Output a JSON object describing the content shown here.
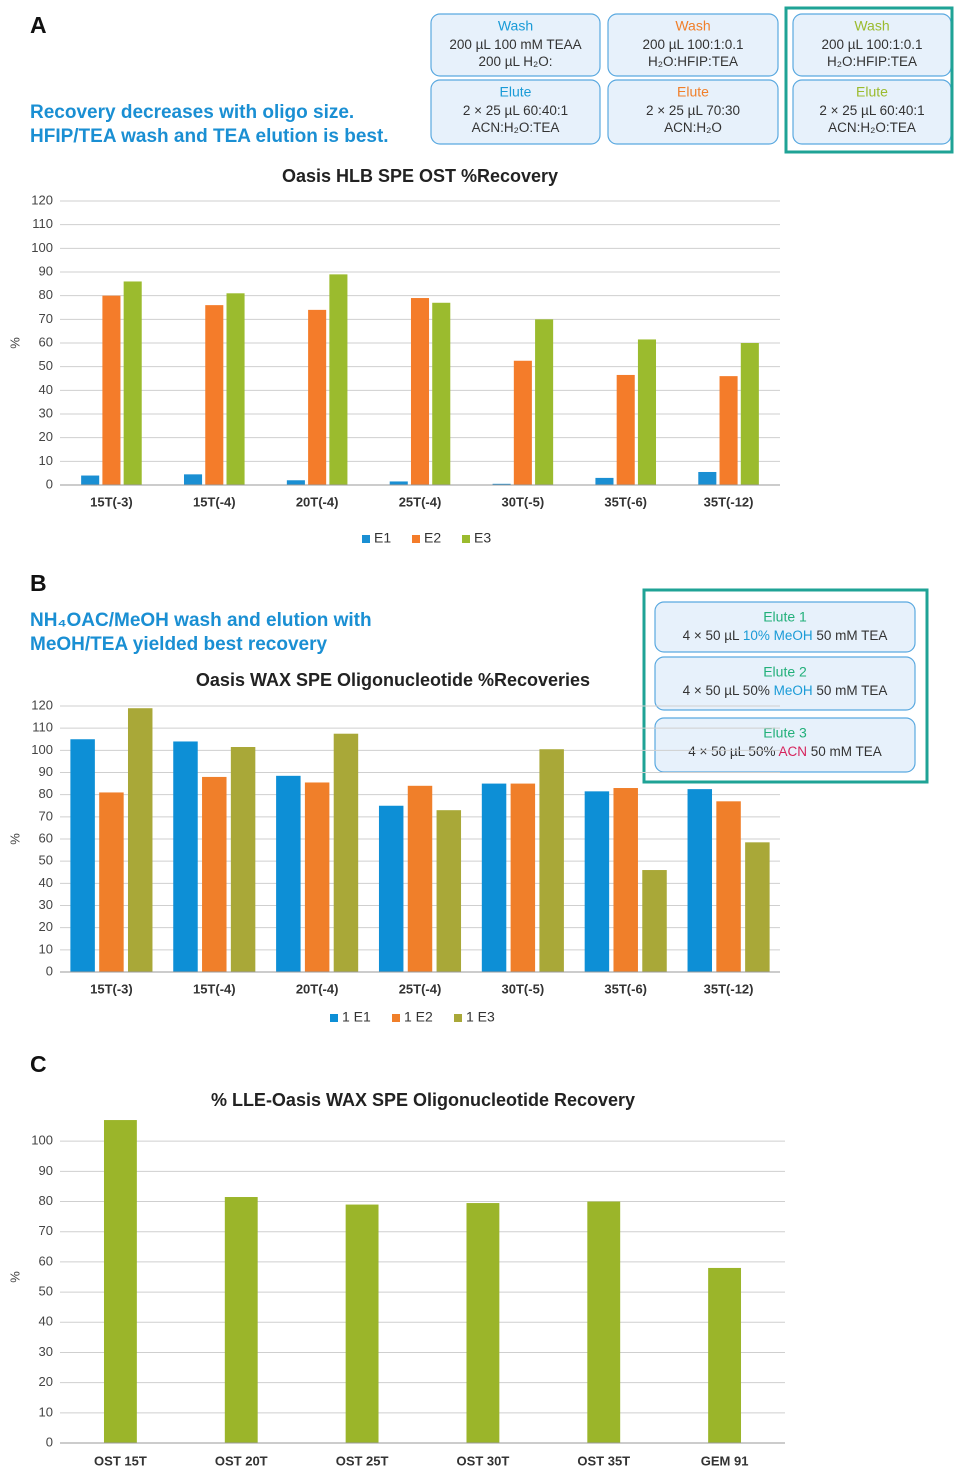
{
  "chart_data": [
    {
      "type": "bar",
      "title": "Oasis HLB SPE OST %Recovery",
      "y_label": "%",
      "categories": [
        "15T(-3)",
        "15T(-4)",
        "20T(-4)",
        "25T(-4)",
        "30T(-5)",
        "35T(-6)",
        "35T(-12)"
      ],
      "series": [
        {
          "name": "E1",
          "color": "#1a8fd3",
          "values": [
            4,
            4.5,
            2,
            1.5,
            0.5,
            3,
            5.5
          ]
        },
        {
          "name": "E2",
          "color": "#f47c2a",
          "values": [
            80,
            76,
            74,
            79,
            52.5,
            46.5,
            46
          ]
        },
        {
          "name": "E3",
          "color": "#9bbb2e",
          "values": [
            86,
            81,
            89,
            77,
            70,
            61.5,
            60
          ]
        }
      ],
      "ylim": [
        0,
        120
      ],
      "yticks": [
        0,
        10,
        20,
        30,
        40,
        50,
        60,
        70,
        80,
        90,
        100,
        110,
        120
      ],
      "grid": true,
      "legend": "bottom"
    },
    {
      "type": "bar",
      "title": "Oasis WAX SPE Oligonucleotide %Recoveries",
      "y_label": "%",
      "categories": [
        "15T(-3)",
        "15T(-4)",
        "20T(-4)",
        "25T(-4)",
        "30T(-5)",
        "35T(-6)",
        "35T(-12)"
      ],
      "series": [
        {
          "name": "1 E1",
          "color": "#0d8fd6",
          "values": [
            105,
            104,
            88.5,
            75,
            85,
            81.5,
            82.5
          ]
        },
        {
          "name": "1 E2",
          "color": "#f07f2a",
          "values": [
            81,
            88,
            85.5,
            84,
            85,
            83,
            77
          ]
        },
        {
          "name": "1 E3",
          "color": "#a9a838",
          "values": [
            119,
            101.5,
            107.5,
            73,
            100.5,
            46,
            58.5
          ]
        }
      ],
      "ylim": [
        0,
        120
      ],
      "yticks": [
        0,
        10,
        20,
        30,
        40,
        50,
        60,
        70,
        80,
        90,
        100,
        110,
        120
      ],
      "grid": true,
      "legend": "bottom"
    },
    {
      "type": "bar",
      "title": "% LLE-Oasis WAX SPE Oligonucleotide Recovery",
      "y_label": "%",
      "categories": [
        "OST 15T",
        "OST 20T",
        "OST 25T",
        "OST 30T",
        "OST 35T",
        "GEM 91"
      ],
      "values": [
        107,
        81.5,
        79,
        79.5,
        80,
        58
      ],
      "color": "#9bb52a",
      "ylim": [
        0,
        110
      ],
      "yticks": [
        0,
        10,
        20,
        30,
        40,
        50,
        60,
        70,
        80,
        90,
        100
      ],
      "grid": true
    }
  ],
  "panels": [
    {
      "letter": "A",
      "headline": [
        "Recovery decreases with oligo size.",
        "HFIP/TEA wash and TEA elution is best."
      ],
      "frame_color": "#1fa396",
      "boxes": [
        {
          "title": "Wash",
          "title_color": "#1a9bd7",
          "lines": [
            [
              {
                "text": "200 µL 100 mM TEAA"
              }
            ],
            [
              {
                "text": "200 µL H₂O:"
              }
            ]
          ]
        },
        {
          "title": "Elute",
          "title_color": "#1a9bd7",
          "lines": [
            [
              {
                "text": "2 × 25 µL 60:40:1"
              }
            ],
            [
              {
                "text": "ACN:H₂O:TEA"
              }
            ]
          ]
        },
        {
          "title": "Wash",
          "title_color": "#f07f2a",
          "lines": [
            [
              {
                "text": "200 µL 100:1:0.1"
              }
            ],
            [
              {
                "text": "H₂O:HFIP:TEA"
              }
            ]
          ]
        },
        {
          "title": "Elute",
          "title_color": "#f07f2a",
          "lines": [
            [
              {
                "text": "2 × 25 µL 70:30"
              }
            ],
            [
              {
                "text": "ACN:H₂O"
              }
            ]
          ]
        },
        {
          "title": "Wash",
          "title_color": "#9bbb2e",
          "lines": [
            [
              {
                "text": "200 µL 100:1:0.1"
              }
            ],
            [
              {
                "text": "H₂O:HFIP:TEA"
              }
            ]
          ]
        },
        {
          "title": "Elute",
          "title_color": "#9bbb2e",
          "lines": [
            [
              {
                "text": "2 × 25 µL 60:40:1"
              }
            ],
            [
              {
                "text": "ACN:H₂O:TEA"
              }
            ]
          ]
        }
      ]
    },
    {
      "letter": "B",
      "headline": [
        "NH₄OAC/MeOH wash and elution with",
        "MeOH/TEA yielded best recovery"
      ],
      "frame_color": "#1fa396",
      "boxes": [
        {
          "title": "Elute 1",
          "title_color": "#22b07a",
          "lines": [
            [
              {
                "text": "4 × 50 µL "
              },
              {
                "text": "10% MeOH",
                "color": "#1a9bd7"
              },
              {
                "text": " 50 mM TEA"
              }
            ]
          ]
        },
        {
          "title": "Elute 2",
          "title_color": "#22b07a",
          "lines": [
            [
              {
                "text": "4 × 50 µL 50% "
              },
              {
                "text": "MeOH",
                "color": "#1a9bd7"
              },
              {
                "text": " 50 mM TEA"
              }
            ]
          ]
        },
        {
          "title": "Elute 3",
          "title_color": "#22b07a",
          "lines": [
            [
              {
                "text": "4 × 50 µL 50% "
              },
              {
                "text": "ACN",
                "color": "#d6245c"
              },
              {
                "text": " 50 mM TEA"
              }
            ]
          ]
        }
      ]
    },
    {
      "letter": "C"
    }
  ]
}
